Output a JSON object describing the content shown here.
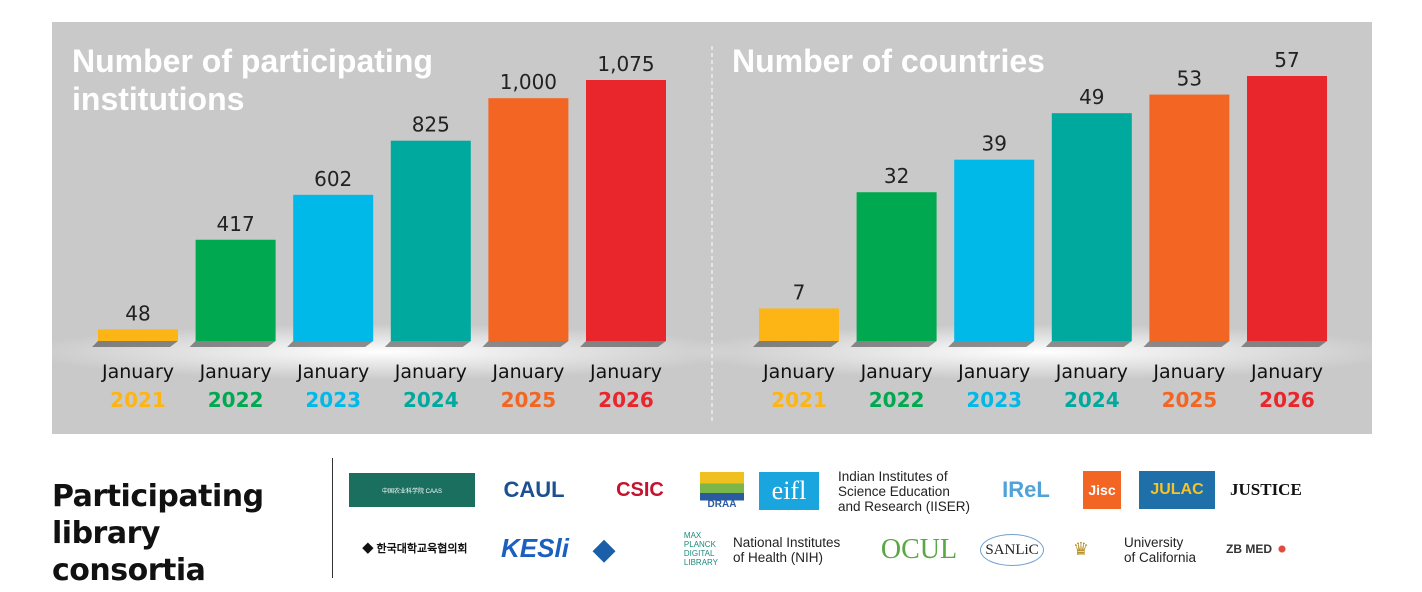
{
  "chart_data": [
    {
      "type": "bar",
      "title": "Number of participating institutions",
      "categories": [
        [
          "January",
          "2021"
        ],
        [
          "January",
          "2022"
        ],
        [
          "January",
          "2023"
        ],
        [
          "January",
          "2024"
        ],
        [
          "January",
          "2025"
        ],
        [
          "January",
          "2026"
        ]
      ],
      "values": [
        48,
        417,
        602,
        825,
        1000,
        1075
      ],
      "data_labels": [
        "48",
        "417",
        "602",
        "825",
        "1,000",
        "1,075"
      ],
      "ylim": [
        0,
        1075
      ],
      "grid": false,
      "colors": [
        "#fdb515",
        "#00a94f",
        "#00b9e8",
        "#00a99d",
        "#f26522",
        "#e8262b"
      ]
    },
    {
      "type": "bar",
      "title": "Number of countries",
      "categories": [
        [
          "January",
          "2021"
        ],
        [
          "January",
          "2022"
        ],
        [
          "January",
          "2023"
        ],
        [
          "January",
          "2024"
        ],
        [
          "January",
          "2025"
        ],
        [
          "January",
          "2026"
        ]
      ],
      "values": [
        7,
        32,
        39,
        49,
        53,
        57
      ],
      "data_labels": [
        "7",
        "32",
        "39",
        "49",
        "53",
        "57"
      ],
      "ylim": [
        0,
        57
      ],
      "grid": false,
      "colors": [
        "#fdb515",
        "#00a94f",
        "#00b9e8",
        "#00a99d",
        "#f26522",
        "#e8262b"
      ]
    }
  ],
  "consortia": {
    "heading": "Participating library consortia",
    "logos": [
      "Chinese Academy of Agricultural Sciences",
      "CAUL",
      "CSIC",
      "DRAA",
      "eifl",
      "Indian Institutes of Science Education and Research (IISER)",
      "IReL",
      "Jisc",
      "JULAC",
      "JUSTICE",
      "Korean Council for University Education",
      "KESLI",
      "MAX PLANCK DIGITAL LIBRARY",
      "National Institutes of Health (NIH)",
      "OCUL",
      "SANLiC",
      "National Library of Sweden",
      "University of California",
      "ZB MED"
    ]
  }
}
